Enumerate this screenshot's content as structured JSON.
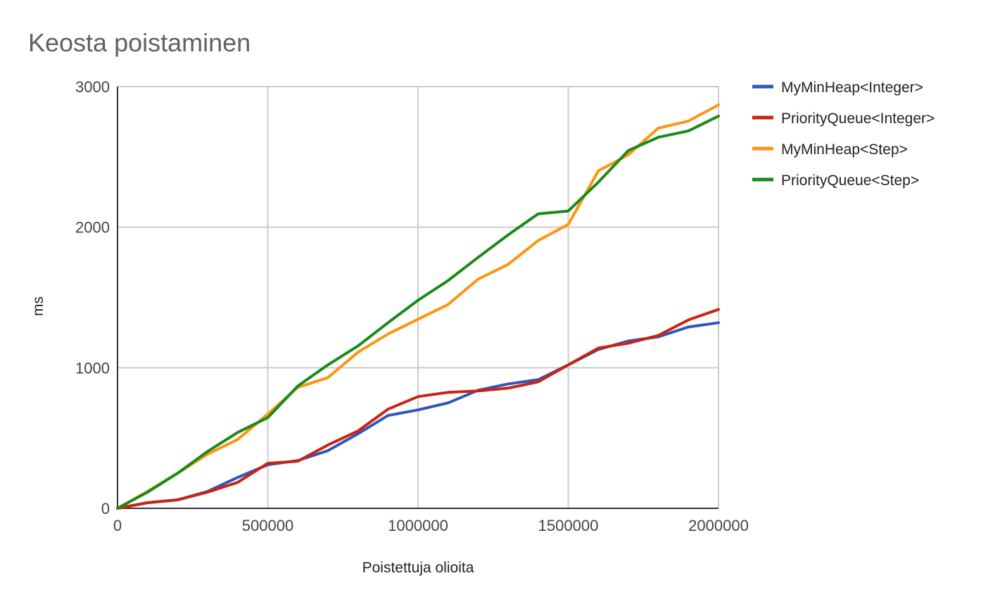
{
  "chart_data": {
    "type": "line",
    "title": "Keosta poistaminen",
    "xlabel": "Poistettuja olioita",
    "ylabel": "ms",
    "xlim": [
      0,
      2000000
    ],
    "ylim": [
      0,
      3000
    ],
    "x_ticks": [
      0,
      500000,
      1000000,
      1500000,
      2000000
    ],
    "x_tick_labels": [
      "0",
      "500000",
      "1000000",
      "1500000",
      "2000000"
    ],
    "y_ticks": [
      0,
      1000,
      2000,
      3000
    ],
    "y_tick_labels": [
      "0",
      "1000",
      "2000",
      "3000"
    ],
    "grid": true,
    "legend_position": "right",
    "x": [
      0,
      100000,
      200000,
      300000,
      400000,
      500000,
      600000,
      700000,
      800000,
      900000,
      1000000,
      1100000,
      1200000,
      1300000,
      1400000,
      1500000,
      1600000,
      1700000,
      1800000,
      1900000,
      2000000
    ],
    "series": [
      {
        "name": "MyMinHeap<Integer>",
        "color": "#3355bb",
        "values": [
          0,
          40,
          60,
          120,
          220,
          310,
          340,
          410,
          530,
          660,
          700,
          750,
          840,
          885,
          915,
          1020,
          1130,
          1190,
          1220,
          1290,
          1320
        ]
      },
      {
        "name": "PriorityQueue<Integer>",
        "color": "#cc2211",
        "values": [
          0,
          40,
          60,
          115,
          185,
          320,
          335,
          450,
          550,
          705,
          795,
          825,
          835,
          855,
          900,
          1020,
          1140,
          1175,
          1230,
          1340,
          1415
        ]
      },
      {
        "name": "MyMinHeap<Step>",
        "color": "#ff9411",
        "values": [
          0,
          120,
          250,
          385,
          490,
          670,
          860,
          930,
          1110,
          1240,
          1345,
          1450,
          1630,
          1735,
          1905,
          2020,
          2400,
          2515,
          2705,
          2755,
          2870
        ]
      },
      {
        "name": "PriorityQueue<Step>",
        "color": "#1a8a1a",
        "values": [
          0,
          115,
          250,
          405,
          540,
          645,
          870,
          1020,
          1155,
          1320,
          1480,
          1620,
          1785,
          1945,
          2095,
          2115,
          2320,
          2545,
          2640,
          2685,
          2790
        ]
      }
    ]
  }
}
